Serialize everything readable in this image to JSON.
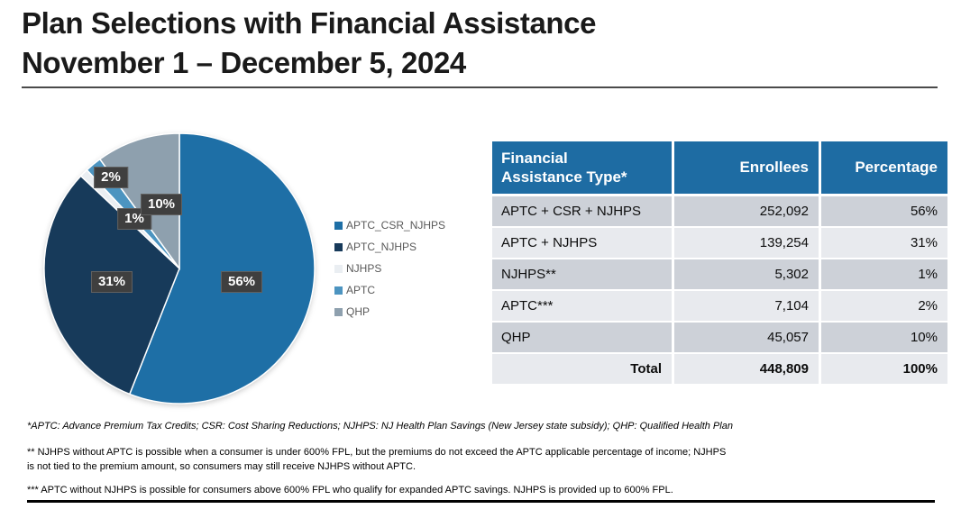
{
  "header": {
    "title": "Plan Selections with Financial Assistance\nNovember 1 – December 5, 2024"
  },
  "chart_data": {
    "type": "pie",
    "title": "",
    "start_angle_deg": 0,
    "direction": "clockwise",
    "legend_position": "right",
    "slices": [
      {
        "name": "APTC_CSR_NJHPS",
        "value": 56,
        "label": "56%",
        "color": "#1E6FA6"
      },
      {
        "name": "APTC_NJHPS",
        "value": 31,
        "label": "31%",
        "color": "#173A5A"
      },
      {
        "name": "NJHPS",
        "value": 1,
        "label": "1%",
        "color": "#EAEEF2"
      },
      {
        "name": "APTC",
        "value": 2,
        "label": "2%",
        "color": "#4C94C0"
      },
      {
        "name": "QHP",
        "value": 10,
        "label": "10%",
        "color": "#8EA0AE"
      }
    ]
  },
  "table": {
    "columns": [
      "Financial\nAssistance Type*",
      "Enrollees",
      "Percentage"
    ],
    "rows": [
      {
        "type": "APTC + CSR + NJHPS",
        "enrollees": "252,092",
        "percentage": "56%"
      },
      {
        "type": "APTC + NJHPS",
        "enrollees": "139,254",
        "percentage": "31%"
      },
      {
        "type": "NJHPS**",
        "enrollees": "5,302",
        "percentage": "1%"
      },
      {
        "type": "APTC***",
        "enrollees": "7,104",
        "percentage": "2%"
      },
      {
        "type": "QHP",
        "enrollees": "45,057",
        "percentage": "10%"
      }
    ],
    "total_row": {
      "type": "Total",
      "enrollees": "448,809",
      "percentage": "100%"
    }
  },
  "footnotes": [
    "*APTC: Advance Premium Tax Credits; CSR: Cost Sharing Reductions; NJHPS: NJ Health Plan Savings (New Jersey state subsidy); QHP: Qualified Health Plan",
    "** NJHPS without APTC is possible when a consumer is under 600% FPL, but the premiums do not exceed the APTC applicable percentage of income; NJHPS\nis not tied to the premium amount, so consumers may still receive NJHPS without APTC.",
    "*** APTC without NJHPS is possible for consumers above 600% FPL who qualify for expanded APTC savings. NJHPS is provided up to 600% FPL."
  ],
  "colors": {
    "header-blue": "#1E6CA3",
    "row-dark": "#CDD1D8",
    "row-light": "#E8EAEE",
    "badge-bg": "#3F3F3F",
    "legend-text": "#595959"
  }
}
